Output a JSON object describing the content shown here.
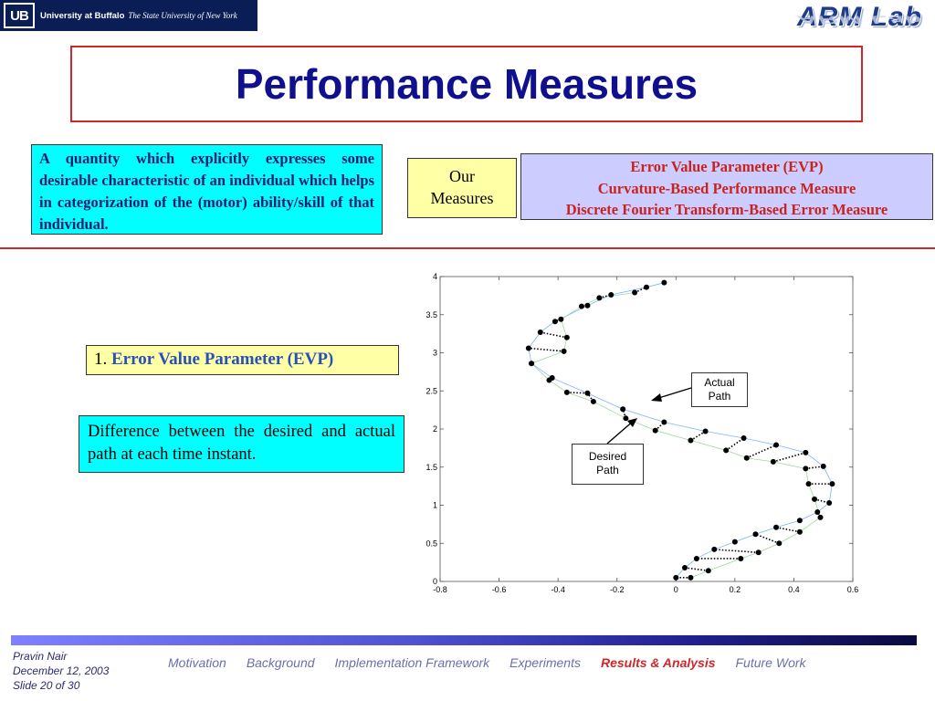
{
  "header": {
    "ub_mark": "UB",
    "ub_name": "University at Buffalo",
    "ub_sub": "The State University of New York",
    "lab_logo": "ARM Lab"
  },
  "title": "Performance Measures",
  "definition": "A quantity which explicitly expresses some desirable characteristic of an individual which helps in categorization of the (motor) ability/skill of that individual.",
  "our_measures": {
    "line1": "Our",
    "line2": "Measures"
  },
  "measures": [
    "Error Value Parameter (EVP)",
    "Curvature-Based Performance Measure",
    "Discrete Fourier Transform-Based Error Measure"
  ],
  "evp": {
    "number": "1.",
    "name": "Error Value Parameter (EVP)"
  },
  "evp_description": "Difference between the desired and actual path at each time instant.",
  "callouts": {
    "actual_line1": "Actual",
    "actual_line2": "Path",
    "desired_line1": "Desired",
    "desired_line2": "Path"
  },
  "chart_data": {
    "type": "scatter",
    "title": "",
    "xlabel": "",
    "ylabel": "",
    "xlim": [
      -0.8,
      0.6
    ],
    "ylim": [
      0,
      4
    ],
    "x_ticks": [
      "-0.8",
      "-0.6",
      "-0.4",
      "-0.2",
      "0",
      "0.2",
      "0.4",
      "0.6"
    ],
    "y_ticks": [
      "0",
      "0.5",
      "1",
      "1.5",
      "2",
      "2.5",
      "3",
      "3.5",
      "4"
    ],
    "grid": false,
    "series": [
      {
        "name": "Actual Path",
        "color": "#000000",
        "points": [
          [
            0.0,
            0.05
          ],
          [
            0.03,
            0.18
          ],
          [
            0.07,
            0.3
          ],
          [
            0.13,
            0.42
          ],
          [
            0.2,
            0.52
          ],
          [
            0.27,
            0.62
          ],
          [
            0.34,
            0.71
          ],
          [
            0.42,
            0.8
          ],
          [
            0.48,
            0.91
          ],
          [
            0.52,
            1.03
          ],
          [
            0.53,
            1.28
          ],
          [
            0.5,
            1.51
          ],
          [
            0.44,
            1.69
          ],
          [
            0.34,
            1.79
          ],
          [
            0.23,
            1.88
          ],
          [
            0.1,
            1.97
          ],
          [
            -0.04,
            2.09
          ],
          [
            -0.18,
            2.26
          ],
          [
            -0.3,
            2.47
          ],
          [
            -0.42,
            2.67
          ],
          [
            -0.49,
            2.86
          ],
          [
            -0.5,
            3.06
          ],
          [
            -0.46,
            3.27
          ],
          [
            -0.41,
            3.41
          ],
          [
            -0.3,
            3.62
          ],
          [
            -0.22,
            3.76
          ],
          [
            -0.1,
            3.86
          ],
          [
            -0.04,
            3.92
          ]
        ]
      },
      {
        "name": "Desired Path",
        "color": "#000000",
        "points": [
          [
            0.05,
            0.05
          ],
          [
            0.11,
            0.14
          ],
          [
            0.22,
            0.3
          ],
          [
            0.28,
            0.38
          ],
          [
            0.35,
            0.5
          ],
          [
            0.42,
            0.65
          ],
          [
            0.49,
            0.84
          ],
          [
            0.47,
            1.08
          ],
          [
            0.45,
            1.28
          ],
          [
            0.44,
            1.48
          ],
          [
            0.33,
            1.57
          ],
          [
            0.24,
            1.62
          ],
          [
            0.17,
            1.72
          ],
          [
            0.05,
            1.85
          ],
          [
            -0.07,
            1.98
          ],
          [
            -0.17,
            2.14
          ],
          [
            -0.28,
            2.36
          ],
          [
            -0.37,
            2.48
          ],
          [
            -0.43,
            2.64
          ],
          [
            -0.49,
            2.86
          ],
          [
            -0.38,
            3.02
          ],
          [
            -0.37,
            3.2
          ],
          [
            -0.39,
            3.44
          ],
          [
            -0.32,
            3.61
          ],
          [
            -0.26,
            3.72
          ],
          [
            -0.14,
            3.79
          ]
        ]
      }
    ]
  },
  "footer": {
    "author": "Pravin Nair",
    "date": "December 12, 2003",
    "slide": "Slide 20 of 30",
    "nav": [
      "Motivation",
      "Background",
      "Implementation Framework",
      "Experiments",
      "Results & Analysis",
      "Future Work"
    ],
    "active_index": 4
  }
}
